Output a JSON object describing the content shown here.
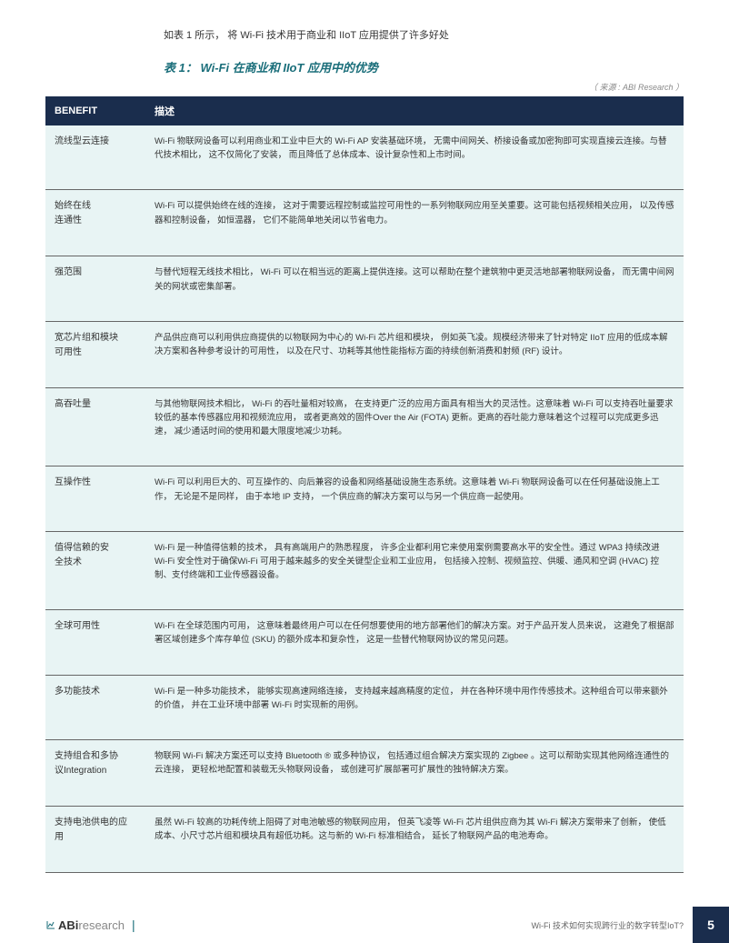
{
  "intro": "如表 1 所示，  将 Wi‐Fi 技术用于商业和 IIoT 应用提供了许多好处",
  "table_title": "表 1： Wi‐Fi 在商业和 IIoT 应用中的优势",
  "source": "（ 来源 : ABI Research ）",
  "header": {
    "col1": "BENEFIT",
    "col2": "描述"
  },
  "rows": [
    {
      "benefit": "流线型云连接",
      "desc": "Wi‐Fi 物联网设备可以利用商业和工业中巨大的 Wi‐Fi AP 安装基础环境，  无需中间网关、桥接设备或加密狗即可实现直接云连接。与替代技术相比，  这不仅简化了安装，  而且降低了总体成本、设计复杂性和上市时间。"
    },
    {
      "benefit": "始终在线\n连通性",
      "desc": "Wi‐Fi 可以提供始终在线的连接，  这对于需要远程控制或监控可用性的一系列物联网应用至关重要。这可能包括视频相关应用，  以及传感器和控制设备，  如恒温器，  它们不能简单地关闭以节省电力。"
    },
    {
      "benefit": "强范围",
      "desc": "与替代短程无线技术相比，  Wi‐Fi 可以在相当远的距离上提供连接。这可以帮助在整个建筑物中更灵活地部署物联网设备，  而无需中间网关的网状或密集部署。"
    },
    {
      "benefit": "宽芯片组和模块\n可用性",
      "desc": "产品供应商可以利用供应商提供的以物联网为中心的 Wi‐Fi 芯片组和模块，  例如英飞凌。规模经济带来了针对特定 IIoT 应用的低成本解决方案和各种参考设计的可用性，  以及在尺寸、功耗等其他性能指标方面的持续创新消费和射频 (RF) 设计。"
    },
    {
      "benefit": "高吞吐量",
      "desc": "与其他物联网技术相比，  Wi‐Fi 的吞吐量相对较高，  在支持更广泛的应用方面具有相当大的灵活性。这意味着 Wi‐Fi 可以支持吞吐量要求较低的基本传感器应用和视频流应用，  或者更高效的固件Over the Air (FOTA) 更新。更高的吞吐能力意味着这个过程可以完成更多迅速，  减少通话时间的使用和最大限度地减少功耗。"
    },
    {
      "benefit": "互操作性",
      "desc": "Wi‐Fi 可以利用巨大的、可互操作的、向后兼容的设备和网络基础设施生态系统。这意味着 Wi‐Fi 物联网设备可以在任何基础设施上工作，  无论是不是同样，  由于本地 IP 支持，  一个供应商的解决方案可以与另一个供应商一起使用。"
    },
    {
      "benefit": "值得信赖的安\n全技术",
      "desc": "Wi‐Fi 是一种值得信赖的技术，  具有高端用户的熟悉程度，  许多企业都利用它来使用案例需要高水平的安全性。通过 WPA3 持续改进 Wi‐Fi 安全性对于确保Wi‐Fi 可用于越来越多的安全关键型企业和工业应用，  包括接入控制、视频监控、供暖、通风和空调 (HVAC) 控制、支付终端和工业传感器设备。"
    },
    {
      "benefit": "全球可用性",
      "desc": "Wi‐Fi 在全球范围内可用，  这意味着最终用户可以在任何想要使用的地方部署他们的解决方案。对于产品开发人员来说，  这避免了根据部署区域创建多个库存单位 (SKU) 的额外成本和复杂性，  这是一些替代物联网协议的常见问题。"
    },
    {
      "benefit": "多功能技术",
      "desc": "Wi‐Fi 是一种多功能技术，  能够实现高速网络连接，  支持越来越高精度的定位，  并在各种环境中用作传感技术。这种组合可以带来额外的价值，  并在工业环境中部署 Wi‐Fi 时实现新的用例。"
    },
    {
      "benefit": "支持组合和多协\n议Integration",
      "desc": "物联网 Wi‐Fi 解决方案还可以支持 Bluetooth ® 或多种协议，  包括通过组合解决方案实现的 Zigbee  。这可以帮助实现其他网络连通性的云连接，  更轻松地配置和装载无头物联网设备，  或创建可扩展部署可扩展性的独特解决方案。"
    },
    {
      "benefit": "支持电池供电的应\n用",
      "desc": "虽然 Wi‐Fi 较高的功耗传统上阻碍了对电池敏感的物联网应用，  但英飞凌等 Wi‐Fi 芯片组供应商为其 Wi‐Fi 解决方案带来了创新，  使低成本、小尺寸芯片组和模块具有超低功耗。这与新的 Wi‐Fi 标准相结合，  延长了物联网产品的电池寿命。"
    }
  ],
  "footer": {
    "logo_bold": "ABi",
    "logo_light": "research",
    "title": "Wi‐Fi 技术如何实现跨行业的数字转型IoT?",
    "page": "5"
  },
  "colors": {
    "header_bg": "#1a2d4d",
    "row_bg": "#e8f4f4",
    "title_color": "#1a6e7a",
    "text_color": "#333333"
  }
}
